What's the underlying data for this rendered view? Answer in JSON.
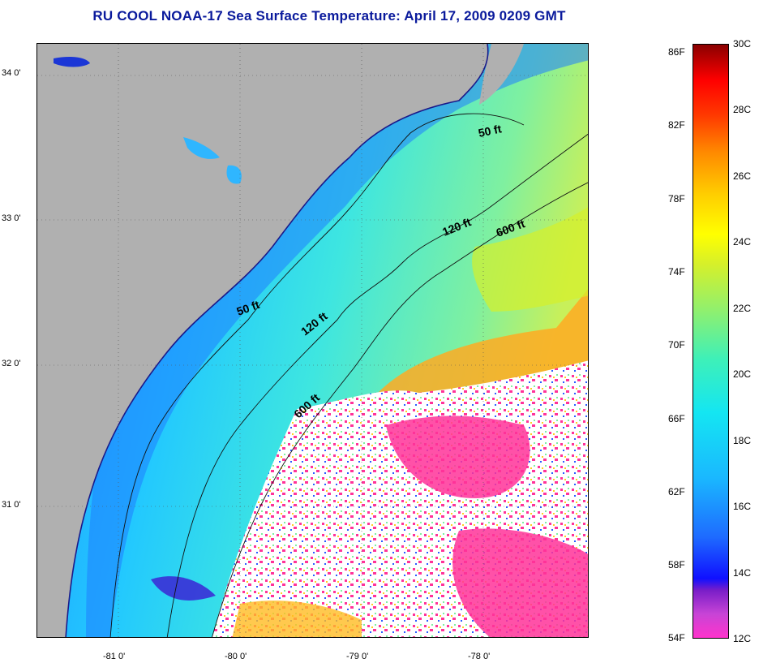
{
  "title": "RU COOL  NOAA-17  Sea Surface Temperature:  April 17, 2009 0209 GMT",
  "map": {
    "latitude_labels": [
      "34 0'",
      "33 0'",
      "32 0'",
      "31 0'"
    ],
    "longitude_labels": [
      "-81 0'",
      "-80 0'",
      "-79 0'",
      "-78 0'"
    ],
    "isobath_labels": [
      "50 ft",
      "50 ft",
      "120 ft",
      "120 ft",
      "600 ft",
      "600 ft"
    ],
    "land_color": "#b0b0b0",
    "cloud_color": "#ffffff",
    "cloud_flag_color": "#ff3399"
  },
  "colorbar": {
    "fahrenheit_labels": [
      "86F",
      "82F",
      "78F",
      "74F",
      "70F",
      "66F",
      "62F",
      "58F",
      "54F"
    ],
    "celsius_labels": [
      "30C",
      "28C",
      "26C",
      "24C",
      "22C",
      "20C",
      "18C",
      "16C",
      "14C",
      "12C"
    ]
  }
}
